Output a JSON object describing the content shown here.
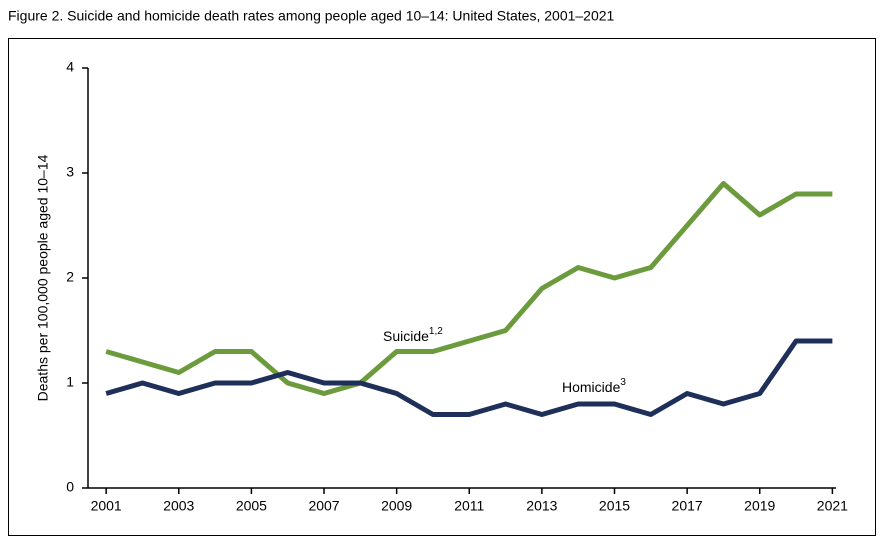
{
  "chart_data": {
    "type": "line",
    "title": "Figure 2. Suicide and homicide death rates among people aged 10–14: United States, 2001–2021",
    "y_label": "Deaths per 100,000 people aged 10–14",
    "x": [
      2001,
      2002,
      2003,
      2004,
      2005,
      2006,
      2007,
      2008,
      2009,
      2010,
      2011,
      2012,
      2013,
      2014,
      2015,
      2016,
      2017,
      2018,
      2019,
      2020,
      2021
    ],
    "series": [
      {
        "name": "Suicide",
        "superscript": "1,2",
        "color": "#6b9b3d",
        "values": [
          1.3,
          1.2,
          1.1,
          1.3,
          1.3,
          1.0,
          0.9,
          1.0,
          1.3,
          1.3,
          1.4,
          1.5,
          1.9,
          2.1,
          2.0,
          2.1,
          2.5,
          2.9,
          2.6,
          2.8,
          2.8
        ]
      },
      {
        "name": "Homicide",
        "superscript": "3",
        "color": "#1e2f5a",
        "values": [
          0.9,
          1.0,
          0.9,
          1.0,
          1.0,
          1.1,
          1.0,
          1.0,
          0.9,
          0.7,
          0.7,
          0.8,
          0.7,
          0.8,
          0.8,
          0.7,
          0.9,
          0.8,
          0.9,
          1.4,
          1.4
        ]
      }
    ],
    "xlim": [
      2000.5,
      2021.1
    ],
    "xticks": [
      2001,
      2003,
      2005,
      2007,
      2009,
      2011,
      2013,
      2015,
      2017,
      2019,
      2021
    ],
    "ylim": [
      0,
      4
    ],
    "yticks": [
      0,
      1,
      2,
      3,
      4
    ]
  }
}
